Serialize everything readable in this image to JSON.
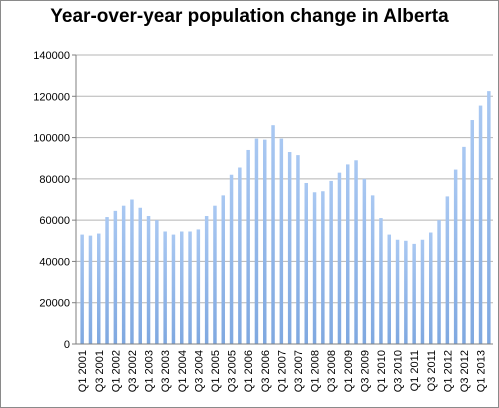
{
  "chart_data": {
    "type": "bar",
    "title": "Year-over-year population change in Alberta",
    "xlabel": "",
    "ylabel": "",
    "ylim": [
      0,
      140000
    ],
    "yticks": [
      0,
      20000,
      40000,
      60000,
      80000,
      100000,
      120000,
      140000
    ],
    "grid": true,
    "legend": "none",
    "bar_color": "#7fa8e0",
    "categories": [
      "Q1 2001",
      "Q2 2001",
      "Q3 2001",
      "Q4 2001",
      "Q1 2002",
      "Q2 2002",
      "Q3 2002",
      "Q4 2002",
      "Q1 2003",
      "Q2 2003",
      "Q3 2003",
      "Q4 2003",
      "Q1 2004",
      "Q2 2004",
      "Q3 2004",
      "Q4 2004",
      "Q1 2005",
      "Q2 2005",
      "Q3 2005",
      "Q4 2005",
      "Q1 2006",
      "Q2 2006",
      "Q3 2006",
      "Q4 2006",
      "Q1 2007",
      "Q2 2007",
      "Q3 2007",
      "Q4 2007",
      "Q1 2008",
      "Q2 2008",
      "Q3 2008",
      "Q4 2008",
      "Q1 2009",
      "Q2 2009",
      "Q3 2009",
      "Q4 2009",
      "Q1 2010",
      "Q2 2010",
      "Q3 2010",
      "Q4 2010",
      "Q1 2011",
      "Q2 2011",
      "Q3 2011",
      "Q4 2011",
      "Q1 2012",
      "Q2 2012",
      "Q3 2012",
      "Q4 2012",
      "Q1 2013",
      "Q2 2013"
    ],
    "values": [
      53000,
      52500,
      53500,
      61500,
      64500,
      67000,
      70000,
      66000,
      62000,
      60000,
      54500,
      53000,
      54500,
      54500,
      55500,
      62000,
      67000,
      72000,
      82000,
      85500,
      94000,
      99500,
      99000,
      106000,
      99500,
      93000,
      91500,
      78000,
      73500,
      74000,
      79000,
      83000,
      87000,
      89000,
      80000,
      72000,
      61000,
      53000,
      50500,
      50000,
      48500,
      50500,
      54000,
      60000,
      71500,
      84500,
      95500,
      108500,
      115500,
      122500
    ]
  }
}
